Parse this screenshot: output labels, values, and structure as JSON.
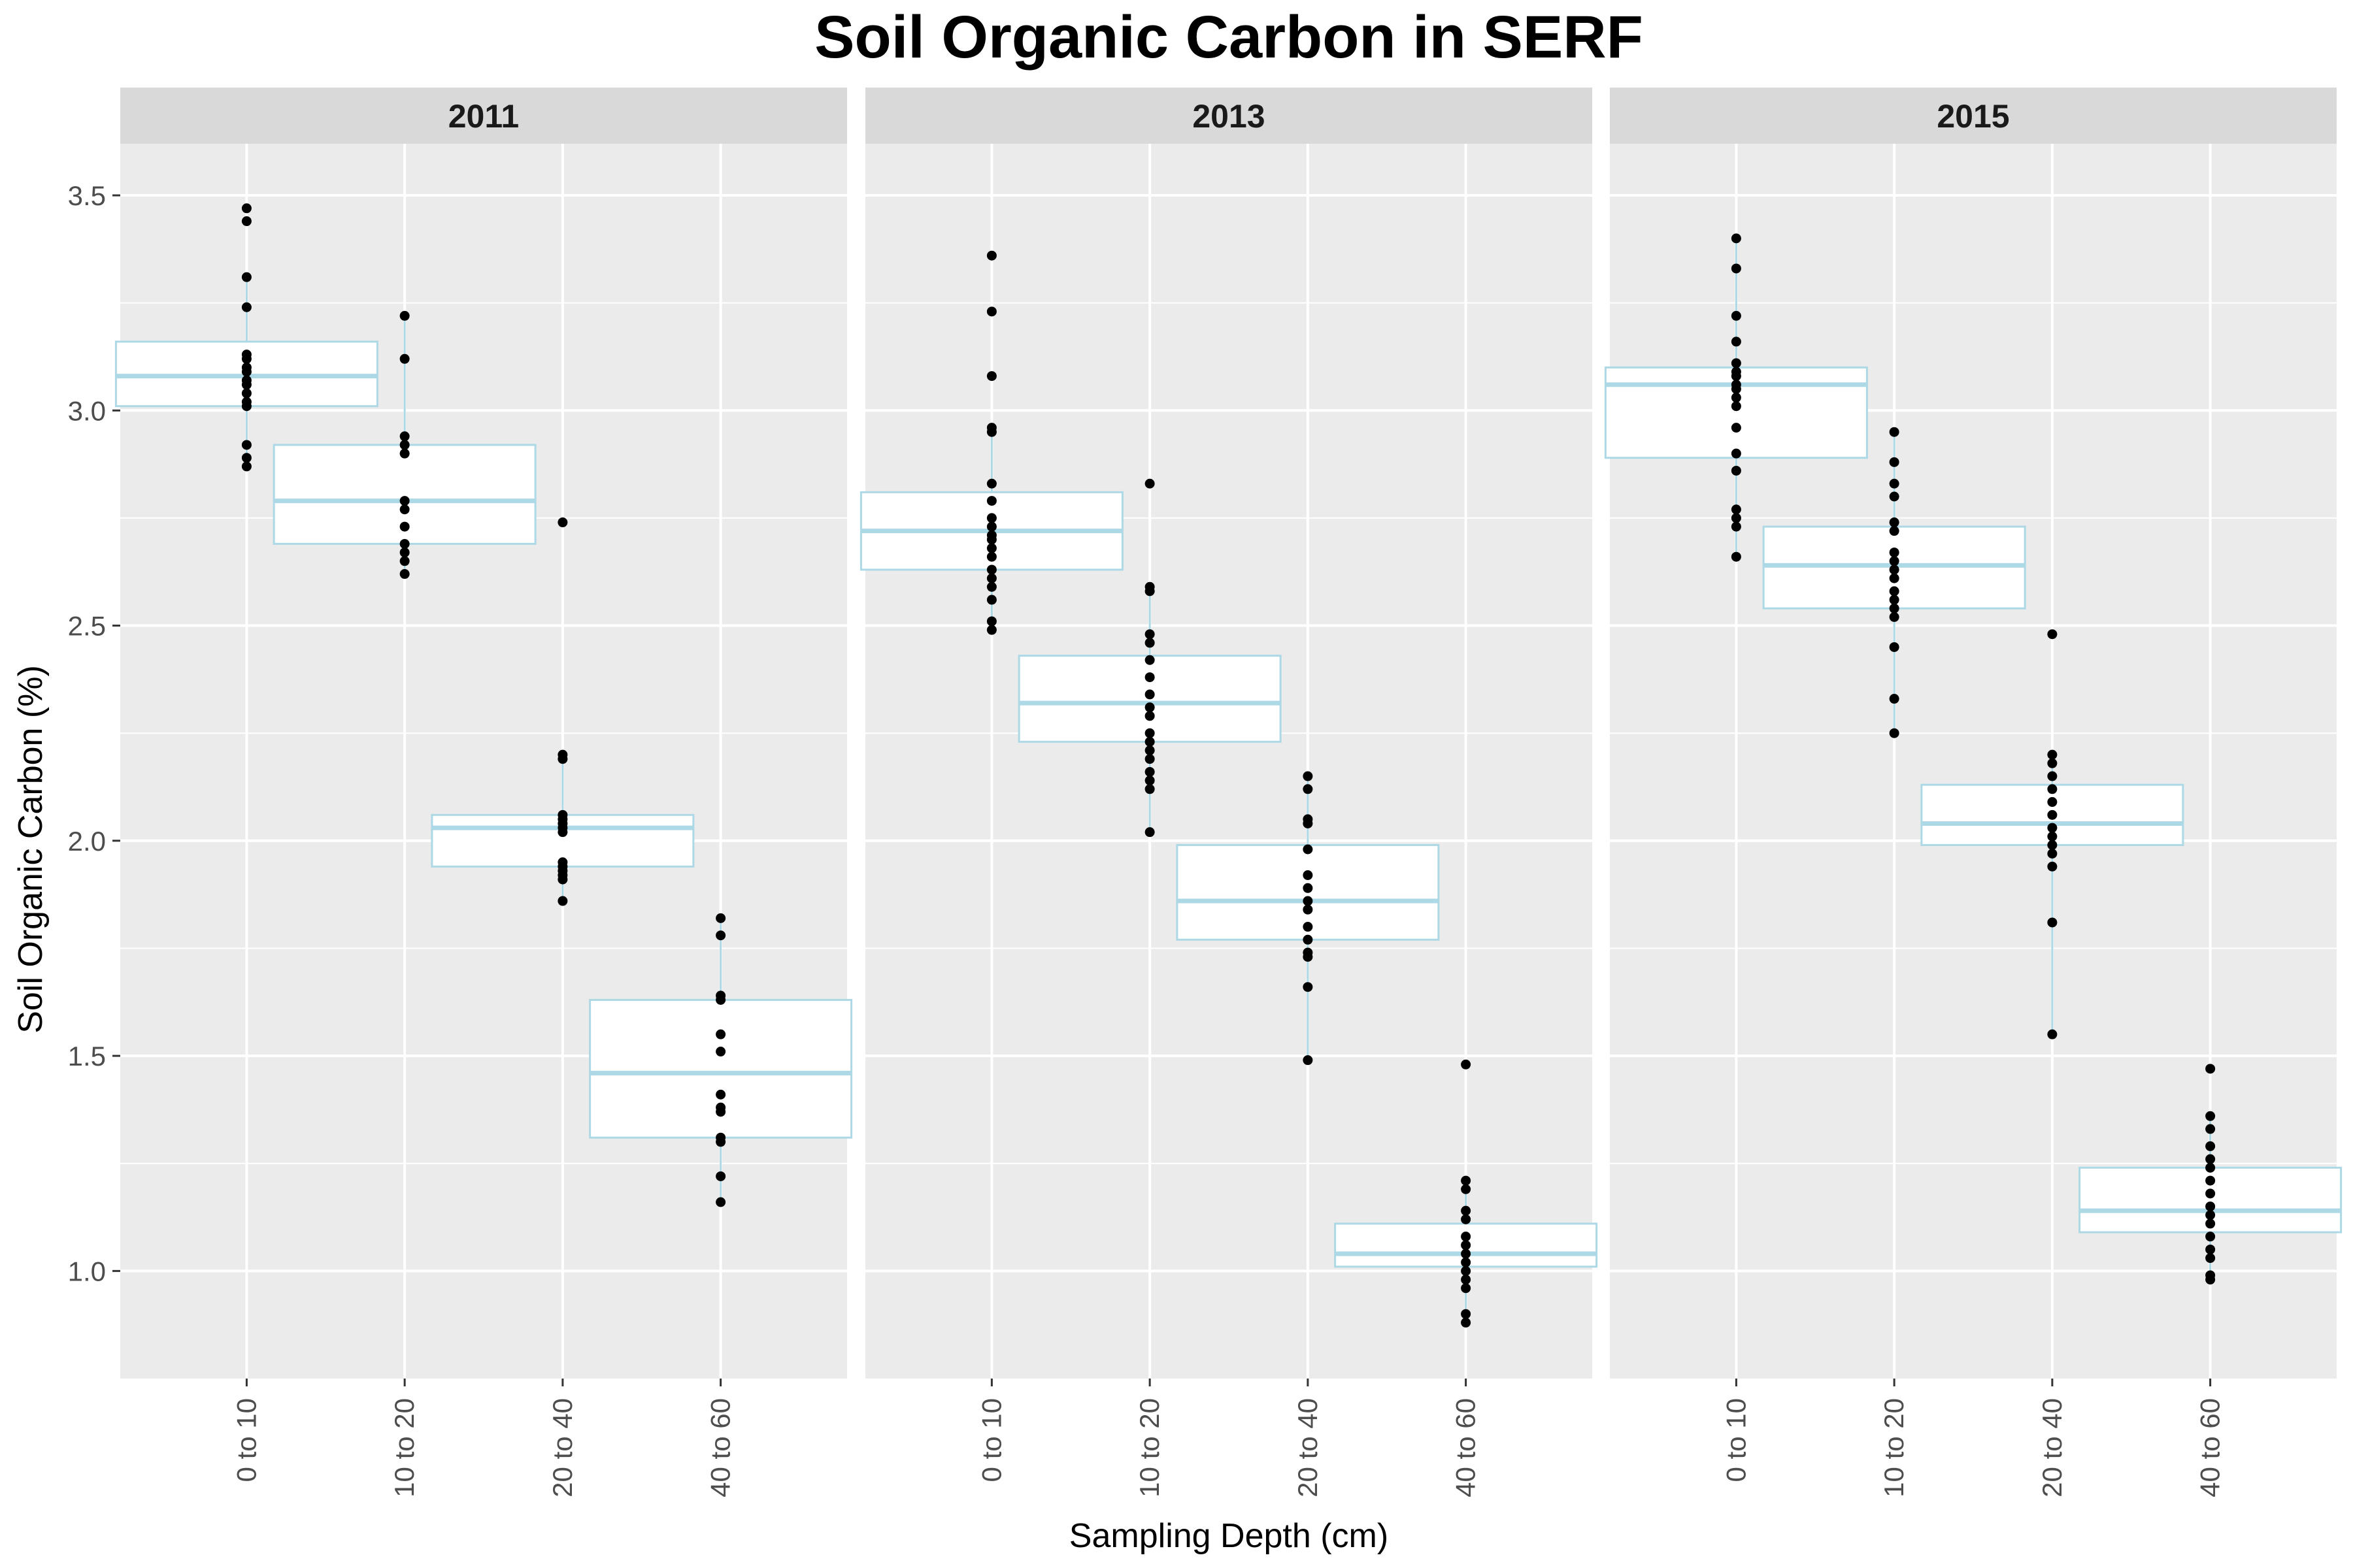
{
  "chart_data": {
    "type": "box",
    "title": "Soil Organic Carbon in SERF",
    "xlabel": "Sampling Depth (cm)",
    "ylabel": "Soil Organic Carbon (%)",
    "ylim": [
      0.75,
      3.62
    ],
    "y_ticks": [
      1.0,
      1.5,
      2.0,
      2.5,
      3.0,
      3.5
    ],
    "y_tick_labels": [
      "1.0",
      "1.5",
      "2.0",
      "2.5",
      "3.0",
      "3.5"
    ],
    "categories": [
      "0 to 10",
      "10 to 20",
      "20 to 40",
      "40 to 60"
    ],
    "grid": true,
    "colors": {
      "panel_bg": "#ebebeb",
      "strip_bg": "#d9d9d9",
      "grid": "#ffffff",
      "box_outline": "#add8e6",
      "points": "#000000"
    },
    "panels": [
      {
        "facet": "2011",
        "boxes": [
          {
            "category": "0 to 10",
            "min": 2.87,
            "q1": 3.01,
            "median": 3.08,
            "q3": 3.16,
            "max": 3.31,
            "points": [
              3.47,
              3.44,
              3.31,
              3.24,
              3.13,
              3.12,
              3.1,
              3.09,
              3.07,
              3.06,
              3.04,
              3.02,
              3.01,
              2.92,
              2.89,
              2.87
            ]
          },
          {
            "category": "10 to 20",
            "min": 2.62,
            "q1": 2.69,
            "median": 2.79,
            "q3": 2.92,
            "max": 3.22,
            "points": [
              3.22,
              3.12,
              2.94,
              2.92,
              2.9,
              2.79,
              2.77,
              2.73,
              2.69,
              2.67,
              2.65,
              2.62
            ]
          },
          {
            "category": "20 to 40",
            "min": 1.86,
            "q1": 1.94,
            "median": 2.03,
            "q3": 2.06,
            "max": 2.2,
            "points": [
              2.74,
              2.2,
              2.19,
              2.06,
              2.05,
              2.04,
              2.03,
              2.02,
              1.95,
              1.94,
              1.93,
              1.92,
              1.91,
              1.86
            ]
          },
          {
            "category": "40 to 60",
            "min": 1.16,
            "q1": 1.31,
            "median": 1.46,
            "q3": 1.63,
            "max": 1.82,
            "points": [
              1.82,
              1.78,
              1.64,
              1.63,
              1.55,
              1.51,
              1.41,
              1.38,
              1.37,
              1.31,
              1.3,
              1.22,
              1.16
            ]
          }
        ]
      },
      {
        "facet": "2013",
        "boxes": [
          {
            "category": "0 to 10",
            "min": 2.49,
            "q1": 2.63,
            "median": 2.72,
            "q3": 2.81,
            "max": 2.96,
            "points": [
              3.36,
              3.23,
              3.08,
              2.96,
              2.95,
              2.83,
              2.79,
              2.75,
              2.73,
              2.71,
              2.7,
              2.68,
              2.66,
              2.63,
              2.61,
              2.59,
              2.56,
              2.51,
              2.49
            ]
          },
          {
            "category": "10 to 20",
            "min": 2.02,
            "q1": 2.23,
            "median": 2.32,
            "q3": 2.43,
            "max": 2.59,
            "points": [
              2.83,
              2.59,
              2.58,
              2.48,
              2.46,
              2.42,
              2.38,
              2.34,
              2.31,
              2.29,
              2.25,
              2.23,
              2.21,
              2.19,
              2.16,
              2.14,
              2.12,
              2.02
            ]
          },
          {
            "category": "20 to 40",
            "min": 1.49,
            "q1": 1.77,
            "median": 1.86,
            "q3": 1.99,
            "max": 2.15,
            "points": [
              2.15,
              2.12,
              2.05,
              2.04,
              1.98,
              1.92,
              1.89,
              1.86,
              1.84,
              1.8,
              1.77,
              1.74,
              1.73,
              1.66,
              1.49
            ]
          },
          {
            "category": "40 to 60",
            "min": 0.88,
            "q1": 1.01,
            "median": 1.04,
            "q3": 1.11,
            "max": 1.21,
            "points": [
              1.48,
              1.21,
              1.19,
              1.14,
              1.12,
              1.08,
              1.06,
              1.04,
              1.02,
              1.0,
              0.98,
              0.96,
              0.9,
              0.88
            ]
          }
        ]
      },
      {
        "facet": "2015",
        "boxes": [
          {
            "category": "0 to 10",
            "min": 2.66,
            "q1": 2.89,
            "median": 3.06,
            "q3": 3.1,
            "max": 3.4,
            "points": [
              3.4,
              3.33,
              3.22,
              3.16,
              3.11,
              3.09,
              3.08,
              3.06,
              3.05,
              3.03,
              3.01,
              2.96,
              2.9,
              2.86,
              2.77,
              2.75,
              2.73,
              2.66
            ]
          },
          {
            "category": "10 to 20",
            "min": 2.25,
            "q1": 2.54,
            "median": 2.64,
            "q3": 2.73,
            "max": 2.95,
            "points": [
              2.95,
              2.88,
              2.83,
              2.8,
              2.74,
              2.72,
              2.67,
              2.65,
              2.63,
              2.61,
              2.58,
              2.56,
              2.54,
              2.52,
              2.45,
              2.33,
              2.25
            ]
          },
          {
            "category": "20 to 40",
            "min": 1.55,
            "q1": 1.99,
            "median": 2.04,
            "q3": 2.13,
            "max": 2.2,
            "points": [
              2.48,
              2.2,
              2.18,
              2.15,
              2.12,
              2.09,
              2.06,
              2.03,
              2.01,
              1.99,
              1.97,
              1.94,
              1.81,
              1.55
            ]
          },
          {
            "category": "40 to 60",
            "min": 0.98,
            "q1": 1.09,
            "median": 1.14,
            "q3": 1.24,
            "max": 1.36,
            "points": [
              1.47,
              1.36,
              1.33,
              1.29,
              1.26,
              1.24,
              1.21,
              1.18,
              1.15,
              1.13,
              1.11,
              1.08,
              1.05,
              1.03,
              0.99,
              0.98
            ]
          }
        ]
      }
    ]
  }
}
